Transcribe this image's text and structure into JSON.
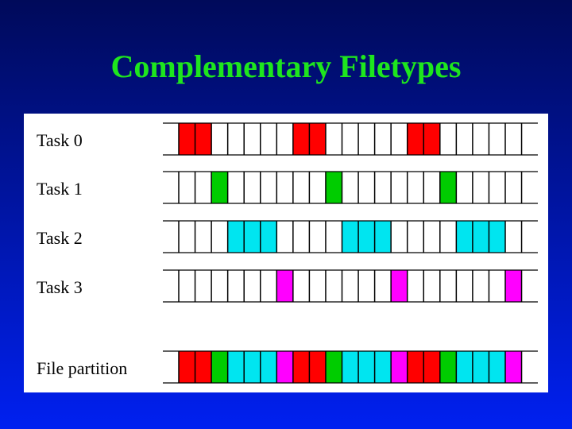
{
  "title": "Complementary Filetypes",
  "rows": [
    {
      "label": "Task 0"
    },
    {
      "label": "Task 1"
    },
    {
      "label": "Task 2"
    },
    {
      "label": "Task 3"
    },
    {
      "label": "File partition"
    }
  ]
}
